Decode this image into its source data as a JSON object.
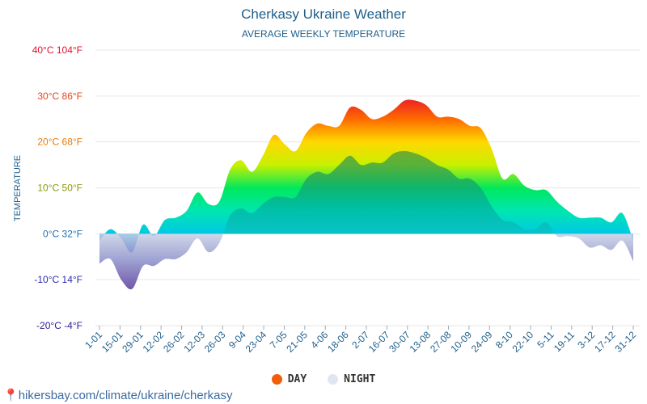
{
  "header": {
    "title": "Cherkasy Ukraine Weather",
    "subtitle": "AVERAGE WEEKLY TEMPERATURE"
  },
  "footer": {
    "text": "hikersbay.com/climate/ukraine/cherkasy"
  },
  "legend": {
    "day": {
      "label": "DAY",
      "color": "#f25d0a"
    },
    "night": {
      "label": "NIGHT",
      "color": "#dfe6f2"
    }
  },
  "colors": {
    "day_gradient": [
      "#e8162a",
      "#ff6a00",
      "#ffd800",
      "#c8f000",
      "#00e85c",
      "#00e6b0",
      "#00c8e6"
    ],
    "night_positive_gradient": [
      "#4a9a3a",
      "#1aa060",
      "#00b0a0",
      "#0ac0c0"
    ],
    "night_negative_gradient": [
      "#c8d0e6",
      "#8a8ec8",
      "#5a3a9a"
    ],
    "day_negative_gradient": [
      "#00b4e8",
      "#2a3ac8"
    ]
  },
  "chart_data": {
    "type": "area",
    "title": "Cherkasy Ukraine Weather",
    "subtitle": "AVERAGE WEEKLY TEMPERATURE",
    "ylabel": "TEMPERATURE",
    "ylim": [
      -20,
      40
    ],
    "yticks": [
      {
        "value": 40,
        "label": "40°C 104°F",
        "color": "#e0102a"
      },
      {
        "value": 30,
        "label": "30°C 86°F",
        "color": "#e8461a"
      },
      {
        "value": 20,
        "label": "20°C 68°F",
        "color": "#e87a0a"
      },
      {
        "value": 10,
        "label": "10°C 50°F",
        "color": "#8a9a0a"
      },
      {
        "value": 0,
        "label": "0°C 32°F",
        "color": "#1f6fb0"
      },
      {
        "value": -10,
        "label": "-10°C 14°F",
        "color": "#2a2ab0"
      },
      {
        "value": -20,
        "label": "-20°C -4°F",
        "color": "#2a1a9a"
      }
    ],
    "x_tick_labels": [
      "1-01",
      "15-01",
      "29-01",
      "12-02",
      "26-02",
      "12-03",
      "26-03",
      "9-04",
      "23-04",
      "7-05",
      "21-05",
      "4-06",
      "18-06",
      "2-07",
      "16-07",
      "30-07",
      "13-08",
      "27-08",
      "10-09",
      "24-09",
      "8-10",
      "22-10",
      "5-11",
      "19-11",
      "3-12",
      "17-12",
      "31-12"
    ],
    "grid": true,
    "series": [
      {
        "name": "DAY",
        "values": [
          -1.5,
          1,
          -1,
          -4,
          2,
          -0.5,
          3,
          3.5,
          5,
          9,
          6.5,
          7,
          14,
          16,
          13.5,
          17,
          21.5,
          19.5,
          18,
          22,
          24,
          23.5,
          23.5,
          27.5,
          27,
          25,
          25.5,
          27,
          29,
          29,
          28,
          25.5,
          25.5,
          25,
          23.5,
          23,
          18.5,
          12,
          13,
          10.5,
          9.5,
          9.5,
          7,
          5,
          3.5,
          3.5,
          3.5,
          2.5,
          4.5,
          -1.5
        ]
      },
      {
        "name": "NIGHT",
        "values": [
          -6.5,
          -5.5,
          -10,
          -12,
          -7,
          -7,
          -5.5,
          -5.5,
          -4,
          -1,
          -4,
          -2,
          4,
          5.5,
          4.5,
          6.5,
          8,
          8,
          8,
          12,
          13.5,
          13,
          15,
          17,
          15,
          15.5,
          15.5,
          17.5,
          18,
          17.5,
          16.5,
          15,
          14,
          12,
          12,
          10,
          6,
          3,
          2.5,
          1,
          1,
          2.5,
          -0.5,
          -0.5,
          -1,
          -3,
          -2.5,
          -3.5,
          -1.5,
          -6
        ]
      }
    ]
  }
}
